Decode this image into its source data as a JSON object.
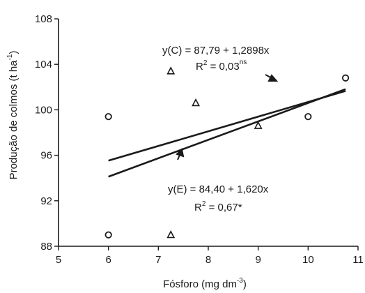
{
  "chart_data": {
    "type": "scatter",
    "xlabel": {
      "text": "Fósforo (mg dm",
      "sup": "-3",
      "close": ")"
    },
    "ylabel": {
      "text": "Produção de colmos (t ha",
      "sup": "-1",
      "close": ")"
    },
    "xlim": [
      5,
      11
    ],
    "ylim": [
      88,
      108
    ],
    "xticks": [
      5,
      6,
      7,
      8,
      9,
      10,
      11
    ],
    "yticks": [
      88,
      92,
      96,
      100,
      104,
      108
    ],
    "series": [
      {
        "marker": "circle",
        "points": [
          {
            "x": 6.0,
            "y": 99.4
          },
          {
            "x": 6.0,
            "y": 89.0
          },
          {
            "x": 10.0,
            "y": 99.4
          },
          {
            "x": 10.75,
            "y": 102.8
          }
        ],
        "regression": {
          "intercept": 87.79,
          "slope": 1.2898,
          "x_range": [
            6.0,
            10.75
          ]
        }
      },
      {
        "marker": "triangle",
        "points": [
          {
            "x": 7.25,
            "y": 103.4
          },
          {
            "x": 7.25,
            "y": 89.0
          },
          {
            "x": 7.75,
            "y": 100.6
          },
          {
            "x": 9.0,
            "y": 98.6
          }
        ],
        "regression": {
          "intercept": 84.4,
          "slope": 1.62,
          "x_range": [
            6.0,
            10.75
          ]
        }
      }
    ],
    "annotations": [
      {
        "id": "c-eq",
        "text": "y(C) = 87,79 + 1,2898x"
      },
      {
        "id": "c-r2",
        "text": "R",
        "sup1": "2",
        "rest": " = 0,03",
        "sup2": "ns"
      },
      {
        "id": "e-eq",
        "text": "y(E) = 84,40 + 1,620x"
      },
      {
        "id": "e-r2",
        "text": "R",
        "sup1": "2",
        "rest": " = 0,67*"
      }
    ],
    "grid": false,
    "legend": "none"
  }
}
